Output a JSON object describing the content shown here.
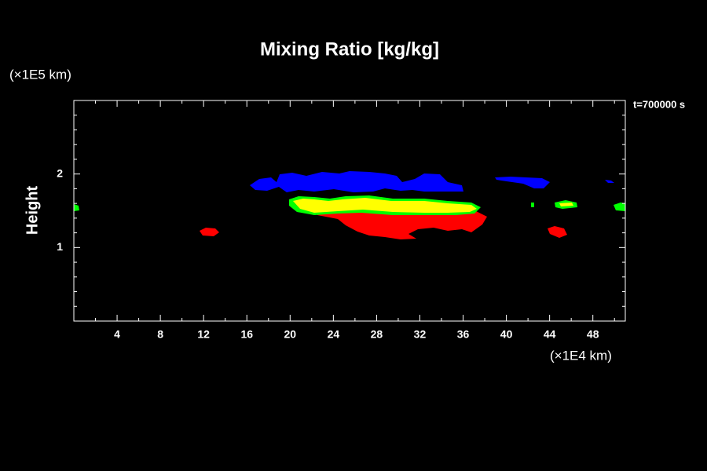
{
  "chart_data": {
    "type": "contour",
    "title": "Mixing Ratio [kg/kg]",
    "ylabel": "Height",
    "yunit": "(×1E5 km)",
    "xunit": "(×1E4 km)",
    "time_label": "t=700000 s",
    "xlim": [
      0,
      51
    ],
    "xticks": [
      4,
      8,
      12,
      16,
      20,
      24,
      28,
      32,
      36,
      40,
      44,
      48
    ],
    "xminorticks": [
      2,
      6,
      10,
      14,
      18,
      22,
      26,
      30,
      34,
      38,
      42,
      46,
      50
    ],
    "ylim": [
      0,
      3
    ],
    "yticks": [
      1,
      2
    ],
    "yminorticks": [
      0.2,
      0.4,
      0.6,
      0.8,
      1.2,
      1.4,
      1.6,
      1.8,
      2.2,
      2.4,
      2.6,
      2.8
    ]
  }
}
